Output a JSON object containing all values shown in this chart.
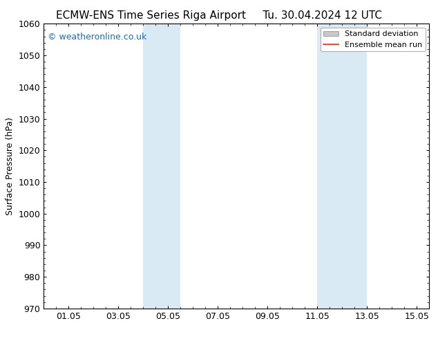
{
  "title_left": "ECMW-ENS Time Series Riga Airport",
  "title_right": "Tu. 30.04.2024 12 UTC",
  "ylabel": "Surface Pressure (hPa)",
  "ylim": [
    970,
    1060
  ],
  "yticks": [
    970,
    980,
    990,
    1000,
    1010,
    1020,
    1030,
    1040,
    1050,
    1060
  ],
  "xtick_labels": [
    "01.05",
    "03.05",
    "05.05",
    "07.05",
    "09.05",
    "11.05",
    "13.05",
    "15.05"
  ],
  "xtick_positions": [
    1,
    3,
    5,
    7,
    9,
    11,
    13,
    15
  ],
  "xlim": [
    0.0,
    15.5
  ],
  "shaded_bands": [
    {
      "x_start": 4.0,
      "x_end": 5.5
    },
    {
      "x_start": 11.0,
      "x_end": 13.0
    }
  ],
  "shade_color": "#daeaf5",
  "watermark_text": "© weatheronline.co.uk",
  "watermark_color": "#1a6bb5",
  "legend_std_label": "Standard deviation",
  "legend_ens_label": "Ensemble mean run",
  "std_color": "#c8c8c8",
  "ens_color": "#ff2200",
  "bg_color": "#ffffff",
  "title_fontsize": 11,
  "axis_label_fontsize": 9,
  "tick_fontsize": 9,
  "watermark_fontsize": 9,
  "legend_fontsize": 8
}
